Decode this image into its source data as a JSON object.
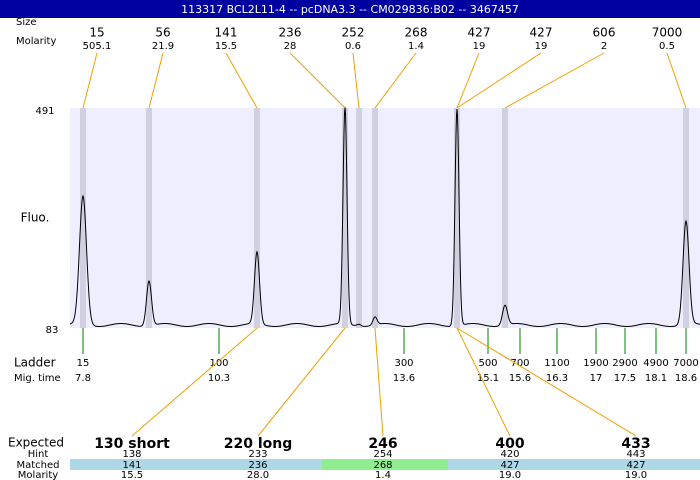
{
  "header": {
    "title": "113317  BCL2L11-4 -- pcDNA3.3 -- CM029836:B02 -- 3467457"
  },
  "peaks": {
    "size_label": "Size",
    "molarity_label": "Molarity",
    "sizes": [
      "15",
      "56",
      "141",
      "236",
      "252",
      "268",
      "427",
      "427",
      "606",
      "7000"
    ],
    "molarities": [
      "505.1",
      "21.9",
      "15.5",
      "28",
      "0.6",
      "1.4",
      "19",
      "19",
      "2",
      "0.5"
    ]
  },
  "axis": {
    "top": "491",
    "bottom": "83",
    "label": "Fluo."
  },
  "ladder": {
    "label": "Ladder",
    "time_label": "Mig. time",
    "sizes": [
      "15",
      "100",
      "300",
      "500",
      "700",
      "1100",
      "1900",
      "2900",
      "4900",
      "7000"
    ],
    "times": [
      "7.8",
      "10.3",
      "13.6",
      "15.1",
      "15.6",
      "16.3",
      "17",
      "17.5",
      "18.1",
      "18.6"
    ]
  },
  "expected": {
    "label": "Expected",
    "hint_label": "Hint",
    "matched_label": "Matched",
    "molarity_label": "Molarity",
    "names": [
      "130 short",
      "220 long",
      "246",
      "400",
      "433"
    ],
    "hint": [
      "138",
      "233",
      "254",
      "420",
      "443"
    ],
    "matched": [
      "141",
      "236",
      "268",
      "427",
      "427"
    ],
    "molarity": [
      "15.5",
      "28.0",
      "1.4",
      "19.0",
      "19.0"
    ]
  }
}
